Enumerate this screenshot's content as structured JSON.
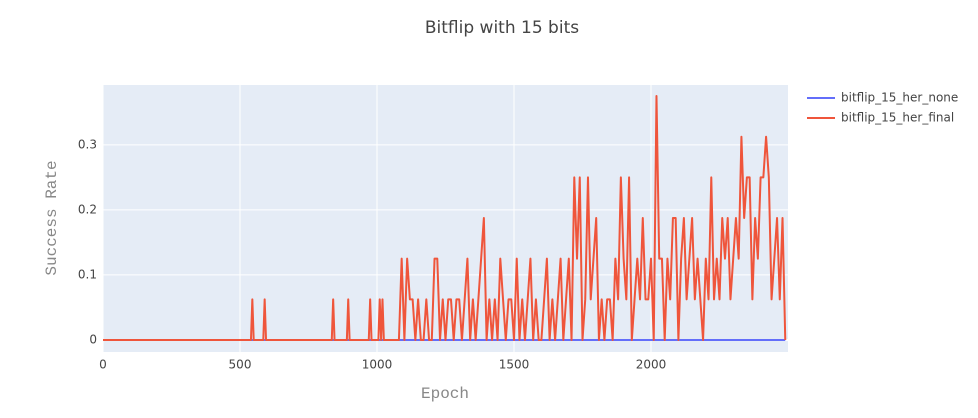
{
  "chart_data": {
    "type": "line",
    "title": "Bitflip with 15 bits",
    "x_label": "Epoch",
    "y_label": "Success Rate",
    "xlim": [
      0,
      2500
    ],
    "ylim": [
      -0.0185,
      0.392
    ],
    "xticks": [
      0,
      500,
      1000,
      1500,
      2000
    ],
    "yticks": [
      0,
      0.1,
      0.2,
      0.3
    ],
    "grid": true,
    "legend": "right",
    "series": [
      {
        "name": "bitflip_15_her_none",
        "color": "#636efa",
        "x": [
          0,
          2490
        ],
        "values": [
          0,
          0
        ]
      },
      {
        "name": "bitflip_15_her_final",
        "color": "#ef553b",
        "x": [
          0,
          540,
          545,
          550,
          585,
          590,
          595,
          835,
          840,
          845,
          890,
          895,
          900,
          970,
          975,
          980,
          1005,
          1010,
          1015,
          1020,
          1025,
          1080,
          1090,
          1100,
          1110,
          1120,
          1130,
          1140,
          1150,
          1160,
          1170,
          1180,
          1190,
          1200,
          1210,
          1220,
          1230,
          1240,
          1250,
          1260,
          1270,
          1280,
          1290,
          1300,
          1310,
          1320,
          1330,
          1340,
          1350,
          1360,
          1370,
          1380,
          1390,
          1400,
          1410,
          1420,
          1430,
          1440,
          1450,
          1460,
          1470,
          1480,
          1490,
          1500,
          1510,
          1520,
          1530,
          1540,
          1550,
          1560,
          1570,
          1580,
          1590,
          1600,
          1610,
          1620,
          1630,
          1640,
          1650,
          1660,
          1670,
          1680,
          1690,
          1700,
          1710,
          1720,
          1730,
          1740,
          1750,
          1760,
          1770,
          1780,
          1790,
          1800,
          1810,
          1820,
          1830,
          1840,
          1850,
          1860,
          1870,
          1880,
          1890,
          1900,
          1910,
          1920,
          1930,
          1940,
          1950,
          1960,
          1970,
          1980,
          1990,
          2000,
          2010,
          2020,
          2030,
          2040,
          2050,
          2060,
          2070,
          2080,
          2090,
          2100,
          2110,
          2120,
          2130,
          2140,
          2150,
          2160,
          2170,
          2180,
          2190,
          2200,
          2210,
          2220,
          2230,
          2240,
          2250,
          2260,
          2270,
          2280,
          2290,
          2300,
          2310,
          2320,
          2330,
          2340,
          2350,
          2360,
          2370,
          2380,
          2390,
          2400,
          2410,
          2420,
          2430,
          2440,
          2450,
          2460,
          2470,
          2480,
          2490
        ],
        "values": [
          0,
          0,
          0.0625,
          0,
          0,
          0.0625,
          0,
          0,
          0.0625,
          0,
          0,
          0.0625,
          0,
          0,
          0.0625,
          0,
          0,
          0.0625,
          0,
          0.0625,
          0,
          0,
          0.125,
          0,
          0.125,
          0.0625,
          0.0625,
          0,
          0.0625,
          0,
          0,
          0.0625,
          0,
          0,
          0.125,
          0.125,
          0,
          0.0625,
          0,
          0.0625,
          0.0625,
          0,
          0.0625,
          0.0625,
          0,
          0.0625,
          0.125,
          0,
          0.0625,
          0,
          0.0625,
          0.125,
          0.1875,
          0,
          0.0625,
          0,
          0.0625,
          0,
          0.125,
          0.0625,
          0,
          0.0625,
          0.0625,
          0,
          0.125,
          0,
          0.0625,
          0,
          0.0625,
          0.125,
          0,
          0.0625,
          0,
          0,
          0.0625,
          0.125,
          0,
          0.0625,
          0,
          0.0625,
          0.125,
          0,
          0.0625,
          0.125,
          0,
          0.25,
          0.125,
          0.25,
          0,
          0.0625,
          0.25,
          0.0625,
          0.125,
          0.1875,
          0,
          0.0625,
          0,
          0.0625,
          0.0625,
          0,
          0.125,
          0.0625,
          0.25,
          0.125,
          0.0625,
          0.25,
          0,
          0.0625,
          0.125,
          0.0625,
          0.1875,
          0.0625,
          0.0625,
          0.125,
          0,
          0.375,
          0.125,
          0.125,
          0,
          0.125,
          0.0625,
          0.1875,
          0.1875,
          0,
          0.125,
          0.1875,
          0.0625,
          0.125,
          0.1875,
          0.0625,
          0.125,
          0.0625,
          0,
          0.125,
          0.0625,
          0.25,
          0.0625,
          0.125,
          0.0625,
          0.1875,
          0.125,
          0.1875,
          0.0625,
          0.125,
          0.1875,
          0.125,
          0.3125,
          0.1875,
          0.25,
          0.25,
          0.0625,
          0.1875,
          0.125,
          0.25,
          0.25,
          0.3125,
          0.25,
          0.0625,
          0.125,
          0.1875,
          0.0625,
          0.1875,
          0
        ]
      }
    ]
  }
}
